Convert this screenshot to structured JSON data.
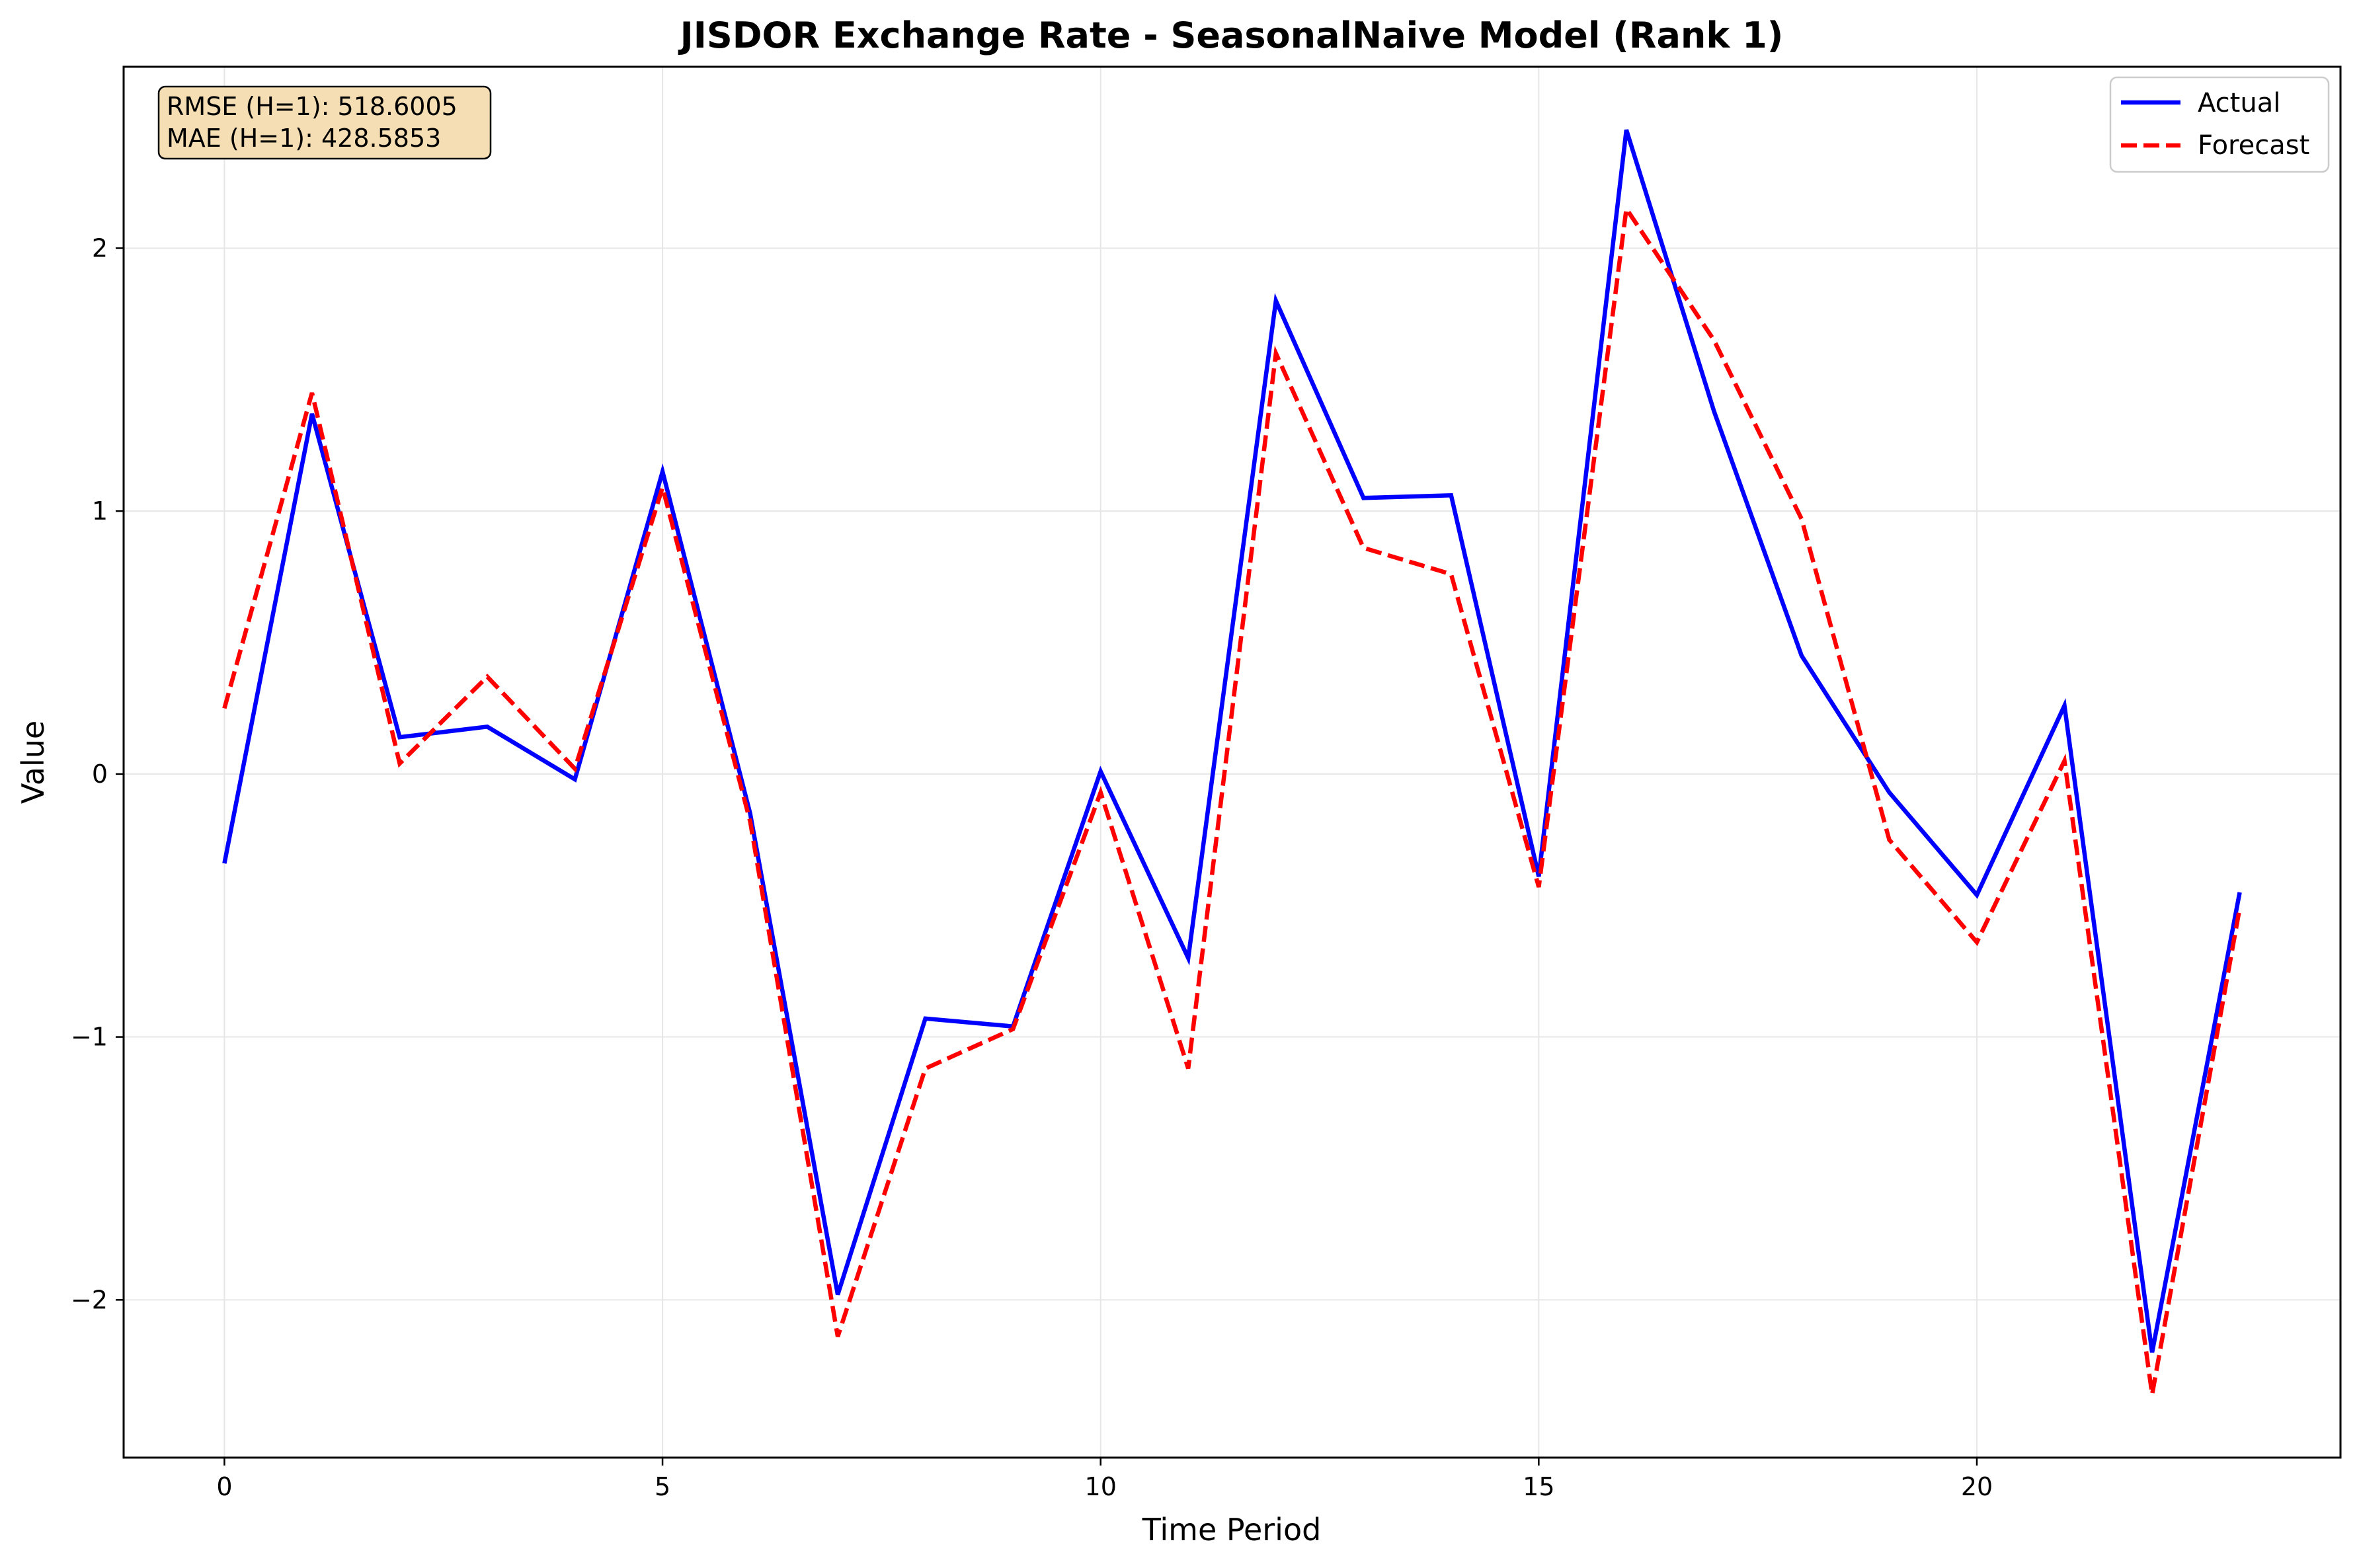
{
  "chart_data": {
    "type": "line",
    "title": "JISDOR Exchange Rate - SeasonalNaive Model (Rank 1)",
    "xlabel": "Time Period",
    "ylabel": "Value",
    "xlim": [
      -1.15,
      24.15
    ],
    "ylim": [
      -2.6,
      2.69
    ],
    "xticks": [
      0,
      5,
      10,
      15,
      20
    ],
    "yticks": [
      -2,
      -1,
      0,
      1,
      2
    ],
    "grid": true,
    "legend_position": "top-right",
    "metrics": [
      "RMSE (H=1): 518.6005",
      "MAE (H=1): 428.5853"
    ],
    "x": [
      0,
      1,
      2,
      3,
      4,
      5,
      6,
      7,
      8,
      9,
      10,
      11,
      12,
      13,
      14,
      15,
      16,
      17,
      18,
      19,
      20,
      21,
      22,
      23
    ],
    "series": [
      {
        "name": "Actual",
        "color": "#0000ff",
        "style": "solid",
        "values": [
          -0.34,
          1.37,
          0.14,
          0.18,
          -0.02,
          1.15,
          -0.15,
          -1.98,
          -0.93,
          -0.96,
          0.01,
          -0.7,
          1.8,
          1.05,
          1.06,
          -0.39,
          2.45,
          1.38,
          0.45,
          -0.07,
          -0.46,
          0.26,
          -2.2,
          -0.45
        ]
      },
      {
        "name": "Forecast",
        "color": "#ff0000",
        "style": "dashed",
        "values": [
          0.25,
          1.45,
          0.04,
          0.37,
          0.02,
          1.09,
          -0.18,
          -2.14,
          -1.12,
          -0.97,
          -0.07,
          -1.12,
          1.6,
          0.86,
          0.76,
          -0.43,
          2.15,
          1.65,
          0.97,
          -0.25,
          -0.64,
          0.05,
          -2.36,
          -0.51
        ]
      }
    ]
  }
}
